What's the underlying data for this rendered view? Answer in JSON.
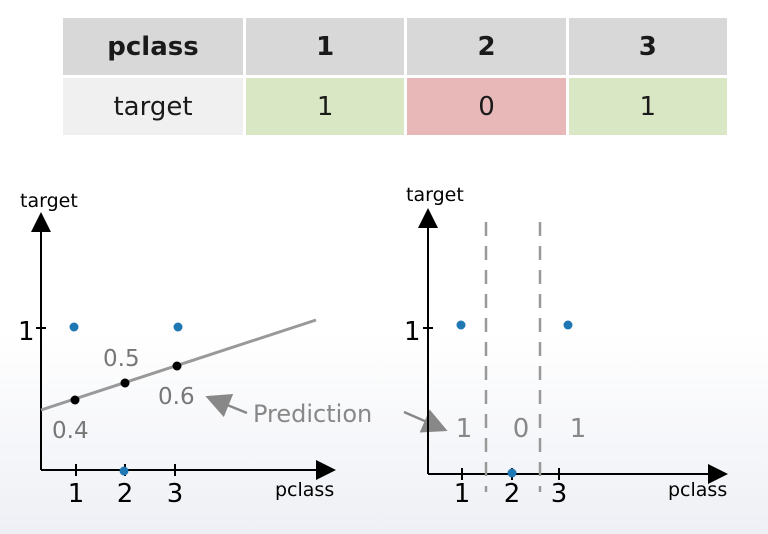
{
  "table": {
    "header": [
      "pclass",
      "1",
      "2",
      "3"
    ],
    "row_label": "target",
    "row_values": [
      "1",
      "0",
      "1"
    ],
    "row_colors": [
      "#d9e7c4",
      "#e8b7b7",
      "#d9e7c4"
    ]
  },
  "left_plot": {
    "xlabel": "pclass",
    "ylabel": "target",
    "x_ticks": [
      "1",
      "2",
      "3"
    ],
    "y_tick": "1",
    "predictions": [
      "0.4",
      "0.5",
      "0.6"
    ],
    "prediction_values": [
      0.4,
      0.5,
      0.6
    ],
    "point_color": "#1f77b4"
  },
  "right_plot": {
    "xlabel": "pclass",
    "ylabel": "target",
    "x_ticks": [
      "1",
      "2",
      "3"
    ],
    "y_tick": "1",
    "region_labels": [
      "1",
      "0",
      "1"
    ]
  },
  "annotation": {
    "prediction_label": "Prediction"
  },
  "chart_data": [
    {
      "type": "scatter",
      "xlabel": "pclass",
      "ylabel": "target",
      "x": [
        1,
        2,
        3
      ],
      "y": [
        1,
        0,
        1
      ],
      "fit_line": {
        "x": [
          1,
          2,
          3
        ],
        "y": [
          0.4,
          0.5,
          0.6
        ]
      }
    },
    {
      "type": "scatter",
      "xlabel": "pclass",
      "ylabel": "target",
      "x": [
        1,
        2,
        3
      ],
      "y": [
        1,
        0,
        1
      ],
      "region_values": [
        1,
        0,
        1
      ]
    }
  ]
}
